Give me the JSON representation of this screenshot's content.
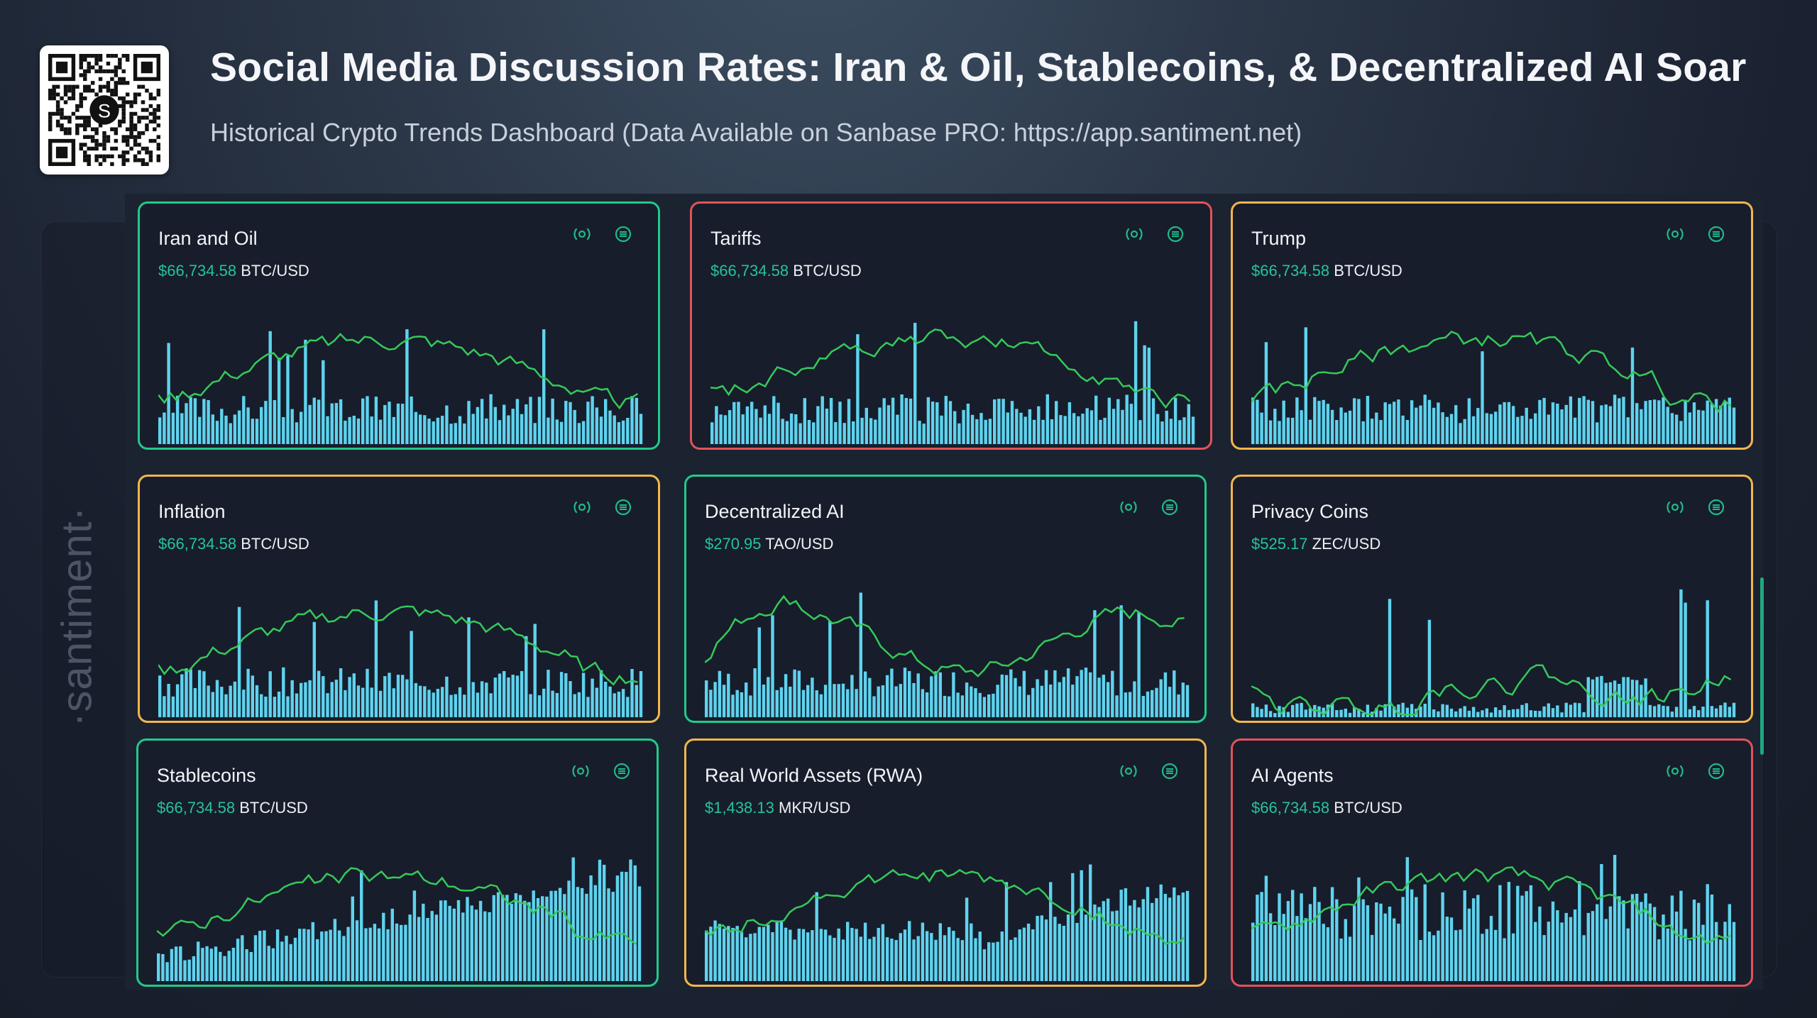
{
  "header": {
    "title": "Social Media Discussion Rates: Iran & Oil, Stablecoins, & Decentralized AI Soar",
    "subtitle": "Historical Crypto Trends Dashboard (Data Available on Sanbase PRO: https://app.santiment.net)"
  },
  "brand": {
    "sidebar_logo": "·santiment·",
    "qr_center": "S"
  },
  "colors": {
    "bar": "#5fd3ee",
    "line": "#35c95a",
    "price": "#26c39b",
    "border_green": "#22c98b",
    "border_red": "#e0545a",
    "border_orange": "#f3b64b"
  },
  "icons": [
    "signal-icon",
    "menu-icon"
  ],
  "cards": [
    {
      "label": "Iran and Oil",
      "price": "$66,734.58",
      "pair": "BTC/USD",
      "border": "green"
    },
    {
      "label": "Tariffs",
      "price": "$66,734.58",
      "pair": "BTC/USD",
      "border": "red"
    },
    {
      "label": "Trump",
      "price": "$66,734.58",
      "pair": "BTC/USD",
      "border": "orange"
    },
    {
      "label": "Inflation",
      "price": "$66,734.58",
      "pair": "BTC/USD",
      "border": "orange"
    },
    {
      "label": "Decentralized AI",
      "price": "$270.95",
      "pair": "TAO/USD",
      "border": "green"
    },
    {
      "label": "Privacy Coins",
      "price": "$525.17",
      "pair": "ZEC/USD",
      "border": "orange"
    },
    {
      "label": "Stablecoins",
      "price": "$66,734.58",
      "pair": "BTC/USD",
      "border": "green"
    },
    {
      "label": "Real World Assets (RWA)",
      "price": "$1,438.13",
      "pair": "MKR/USD",
      "border": "orange"
    },
    {
      "label": "AI Agents",
      "price": "$66,734.58",
      "pair": "BTC/USD",
      "border": "red"
    }
  ]
}
